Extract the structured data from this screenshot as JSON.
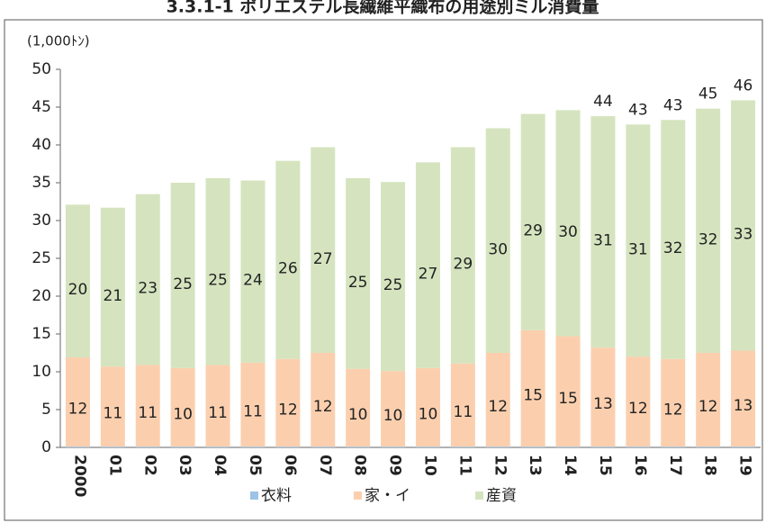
{
  "chart_data": {
    "type": "stacked_bar",
    "title": "3.3.1-1 ポリエステル長繊維平織布の用途別ミル消費量",
    "unit_label": "(1,000ﾄﾝ)",
    "categories": [
      "2000",
      "01",
      "02",
      "03",
      "04",
      "05",
      "06",
      "07",
      "08",
      "09",
      "10",
      "11",
      "12",
      "13",
      "14",
      "15",
      "16",
      "17",
      "18",
      "19"
    ],
    "series": [
      {
        "name": "衣料",
        "color": "#9dc3e6",
        "values": [
          0.1,
          0.1,
          0.1,
          0.1,
          0.1,
          0.1,
          0.1,
          0.1,
          0.1,
          0.1,
          0.1,
          0.1,
          0.1,
          0.1,
          0.1,
          0.1,
          0.1,
          0.1,
          0.1,
          0.1
        ]
      },
      {
        "name": "家・イ",
        "color": "#fbcfae",
        "values": [
          11.8,
          10.6,
          10.8,
          10.4,
          10.8,
          11.1,
          11.6,
          12.4,
          10.3,
          10.0,
          10.4,
          11.0,
          12.4,
          15.4,
          14.6,
          13.1,
          11.9,
          11.6,
          12.4,
          12.7
        ],
        "value_labels": [
          "12",
          "11",
          "11",
          "10",
          "11",
          "11",
          "12",
          "12",
          "10",
          "10",
          "10",
          "11",
          "12",
          "15",
          "15",
          "13",
          "12",
          "12",
          "12",
          "13"
        ]
      },
      {
        "name": "産資",
        "color": "#d5e4bf",
        "values": [
          20.2,
          21.0,
          22.6,
          24.5,
          24.7,
          24.1,
          26.2,
          27.2,
          25.2,
          25.0,
          27.2,
          28.6,
          29.7,
          28.6,
          29.9,
          30.6,
          30.7,
          31.6,
          32.3,
          33.1
        ],
        "value_labels": [
          "20",
          "21",
          "23",
          "25",
          "25",
          "24",
          "26",
          "27",
          "25",
          "25",
          "27",
          "29",
          "30",
          "29",
          "30",
          "31",
          "31",
          "32",
          "32",
          "33"
        ]
      }
    ],
    "totals": [
      null,
      null,
      null,
      null,
      null,
      null,
      null,
      null,
      null,
      null,
      null,
      null,
      null,
      null,
      null,
      44,
      43,
      43,
      45,
      46
    ],
    "ylim": [
      0,
      50
    ],
    "yticks": [
      0,
      5,
      10,
      15,
      20,
      25,
      30,
      35,
      40,
      45,
      50
    ],
    "grid": false
  }
}
